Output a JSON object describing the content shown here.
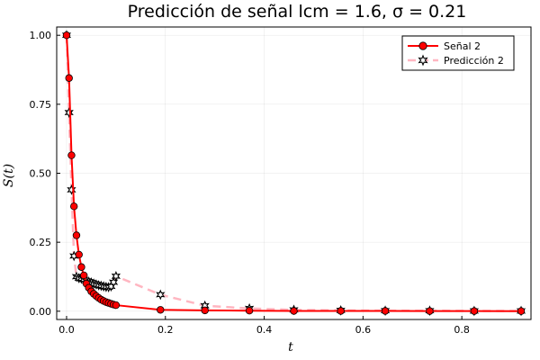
{
  "chart_data": {
    "type": "line",
    "title": "Predicción de señal lcm = 1.6, σ = 0.21",
    "xlabel": "t",
    "ylabel": "S(t)",
    "xlim": [
      -0.02,
      0.94
    ],
    "ylim": [
      -0.03,
      1.03
    ],
    "xticks": [
      0.0,
      0.2,
      0.4,
      0.6,
      0.8
    ],
    "xtick_labels": [
      "0.0",
      "0.2",
      "0.4",
      "0.6",
      "0.8"
    ],
    "yticks": [
      0.0,
      0.25,
      0.5,
      0.75,
      1.0
    ],
    "ytick_labels": [
      "0.00",
      "0.25",
      "0.50",
      "0.75",
      "1.00"
    ],
    "grid": true,
    "legend_position": "top-right",
    "series": [
      {
        "name": "Señal 2",
        "color": "#ff0000",
        "style": "solid-line-circle-markers",
        "x": [
          0.0,
          0.005,
          0.01,
          0.015,
          0.02,
          0.025,
          0.03,
          0.035,
          0.04,
          0.045,
          0.05,
          0.055,
          0.06,
          0.065,
          0.07,
          0.075,
          0.08,
          0.085,
          0.09,
          0.095,
          0.1,
          0.19,
          0.28,
          0.37,
          0.46,
          0.555,
          0.645,
          0.735,
          0.825,
          0.92
        ],
        "y": [
          1.0,
          0.845,
          0.565,
          0.38,
          0.275,
          0.205,
          0.16,
          0.13,
          0.1,
          0.085,
          0.072,
          0.063,
          0.055,
          0.048,
          0.042,
          0.037,
          0.033,
          0.03,
          0.027,
          0.024,
          0.022,
          0.005,
          0.003,
          0.002,
          0.001,
          0.001,
          0.001,
          0.0005,
          0.0005,
          0.0003
        ]
      },
      {
        "name": "Predicción 2",
        "color": "#ffb6c1",
        "marker_color": "#000000",
        "style": "dashed-line-star-markers",
        "x": [
          0.0,
          0.005,
          0.01,
          0.015,
          0.02,
          0.025,
          0.03,
          0.035,
          0.04,
          0.045,
          0.05,
          0.055,
          0.06,
          0.065,
          0.07,
          0.075,
          0.08,
          0.085,
          0.09,
          0.095,
          0.1,
          0.19,
          0.28,
          0.37,
          0.46,
          0.555,
          0.645,
          0.735,
          0.825,
          0.92
        ],
        "y": [
          1.0,
          0.72,
          0.44,
          0.2,
          0.125,
          0.12,
          0.118,
          0.115,
          0.11,
          0.107,
          0.104,
          0.1,
          0.097,
          0.094,
          0.092,
          0.09,
          0.088,
          0.087,
          0.09,
          0.105,
          0.127,
          0.06,
          0.02,
          0.01,
          0.005,
          0.003,
          0.002,
          0.002,
          0.001,
          0.001
        ]
      }
    ]
  }
}
